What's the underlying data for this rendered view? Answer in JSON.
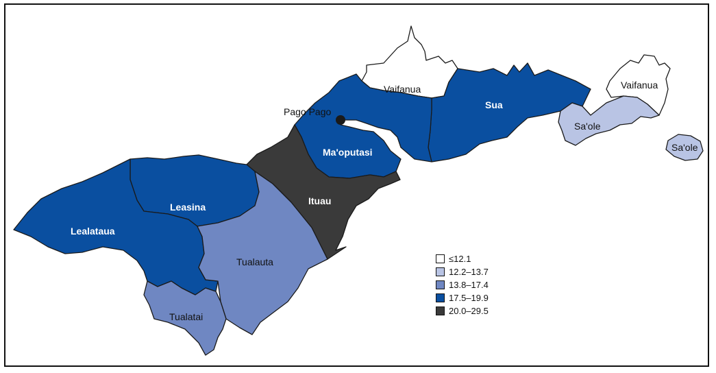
{
  "colors": {
    "bin1": "#ffffff",
    "bin2": "#b9c4e4",
    "bin3": "#6f87c2",
    "bin4": "#0a4fa0",
    "bin5": "#3a3a3a",
    "outline": "#1a1a1a"
  },
  "map": {
    "city": {
      "name": "Pago Pago",
      "marker_icon": "city-dot-icon"
    },
    "regions": [
      {
        "name": "Vaifanua",
        "bin": "bin1"
      },
      {
        "name": "Vaifanua",
        "bin": "bin1"
      },
      {
        "name": "Sua",
        "bin": "bin4"
      },
      {
        "name": "Sa'ole",
        "bin": "bin2"
      },
      {
        "name": "Sa'ole",
        "bin": "bin2"
      },
      {
        "name": "Ma'oputasi",
        "bin": "bin4"
      },
      {
        "name": "Ituau",
        "bin": "bin5"
      },
      {
        "name": "Leasina",
        "bin": "bin4"
      },
      {
        "name": "Lealataua",
        "bin": "bin4"
      },
      {
        "name": "Tualauta",
        "bin": "bin3"
      },
      {
        "name": "Tualatai",
        "bin": "bin3"
      }
    ]
  },
  "legend": {
    "items": [
      {
        "label": "≤12.1",
        "bin": "bin1"
      },
      {
        "label": "12.2–13.7",
        "bin": "bin2"
      },
      {
        "label": "13.8–17.4",
        "bin": "bin3"
      },
      {
        "label": "17.5–19.9",
        "bin": "bin4"
      },
      {
        "label": "20.0–29.5",
        "bin": "bin5"
      }
    ]
  }
}
